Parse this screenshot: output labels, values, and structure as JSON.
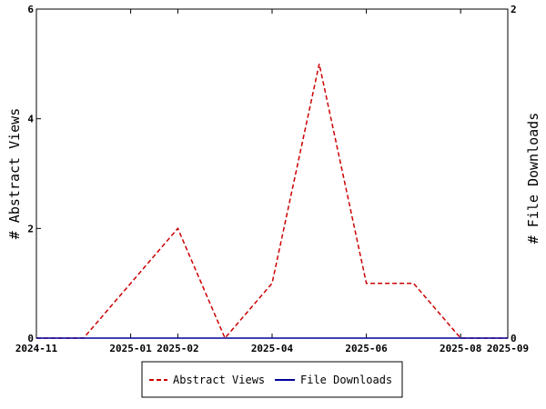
{
  "chart_data": {
    "type": "line",
    "ylabel_left": "# Abstract Views",
    "ylabel_right": "# File Downloads",
    "x_ticks": [
      "2024-11",
      "2025-01",
      "2025-02",
      "2025-04",
      "2025-06",
      "2025-08",
      "2025-09"
    ],
    "x_range": [
      "2024-11",
      "2025-09"
    ],
    "ylim_left": [
      0,
      6
    ],
    "ylim_right": [
      0,
      2
    ],
    "y_ticks_left": [
      "0",
      "2",
      "4",
      "6"
    ],
    "y_ticks_right": [
      "0",
      "2"
    ],
    "legend_position": "bottom",
    "grid": false,
    "series": [
      {
        "name": "Abstract Views",
        "axis": "left",
        "color": "#cc0000",
        "style": "dashed",
        "x": [
          "2024-11",
          "2024-12",
          "2025-01",
          "2025-02",
          "2025-03",
          "2025-04",
          "2025-05",
          "2025-06",
          "2025-07",
          "2025-08",
          "2025-09"
        ],
        "values": [
          0,
          0,
          1,
          2,
          0,
          1,
          5,
          1,
          1,
          0,
          0
        ]
      },
      {
        "name": "File Downloads",
        "axis": "right",
        "color": "#000099",
        "style": "solid",
        "x": [
          "2024-11",
          "2024-12",
          "2025-01",
          "2025-02",
          "2025-03",
          "2025-04",
          "2025-05",
          "2025-06",
          "2025-07",
          "2025-08",
          "2025-09"
        ],
        "values": [
          0,
          0,
          0,
          0,
          0,
          0,
          0,
          0,
          0,
          0,
          0
        ]
      }
    ]
  }
}
